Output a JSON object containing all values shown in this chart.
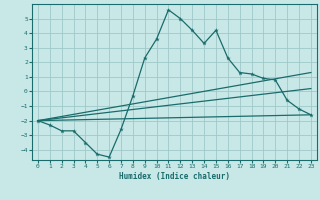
{
  "xlabel": "Humidex (Indice chaleur)",
  "ylabel": "",
  "background_color": "#c8e8e8",
  "grid_color": "#a0c8c8",
  "line_color": "#1a6b6b",
  "xlim": [
    -0.5,
    23.5
  ],
  "ylim": [
    -4.7,
    6.0
  ],
  "xticks": [
    0,
    1,
    2,
    3,
    4,
    5,
    6,
    7,
    8,
    9,
    10,
    11,
    12,
    13,
    14,
    15,
    16,
    17,
    18,
    19,
    20,
    21,
    22,
    23
  ],
  "yticks": [
    -4,
    -3,
    -2,
    -1,
    0,
    1,
    2,
    3,
    4,
    5
  ],
  "series": [
    {
      "x": [
        0,
        1,
        2,
        3,
        4,
        5,
        6,
        7,
        8,
        9,
        10,
        11,
        12,
        13,
        14,
        15,
        16,
        17,
        18,
        19,
        20,
        21,
        22,
        23
      ],
      "y": [
        -2.0,
        -2.3,
        -2.7,
        -2.7,
        -3.5,
        -4.3,
        -4.5,
        -2.6,
        -0.3,
        2.3,
        3.6,
        5.6,
        5.0,
        4.2,
        3.3,
        4.2,
        2.3,
        1.3,
        1.2,
        0.9,
        0.8,
        -0.6,
        -1.2,
        -1.6
      ],
      "marker": "*",
      "linewidth": 0.9
    },
    {
      "x": [
        0,
        23
      ],
      "y": [
        -2.0,
        1.3
      ],
      "marker": null,
      "linewidth": 0.9
    },
    {
      "x": [
        0,
        23
      ],
      "y": [
        -2.0,
        0.2
      ],
      "marker": null,
      "linewidth": 0.9
    },
    {
      "x": [
        0,
        23
      ],
      "y": [
        -2.0,
        -1.6
      ],
      "marker": null,
      "linewidth": 0.9
    }
  ]
}
